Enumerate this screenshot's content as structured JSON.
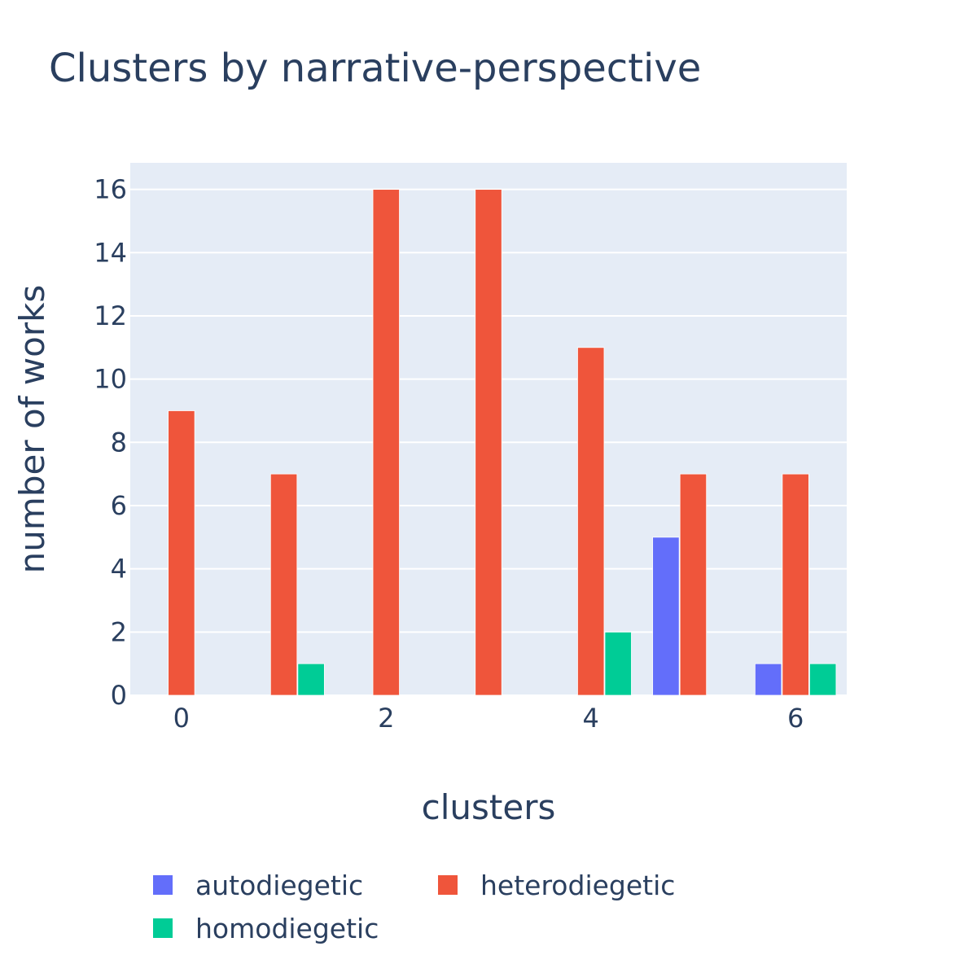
{
  "chart_data": {
    "type": "bar",
    "title": "Clusters by narrative-perspective",
    "xlabel": "clusters",
    "ylabel": "number of works",
    "x": [
      0,
      1,
      2,
      3,
      4,
      5,
      6
    ],
    "x_tick_values": [
      0,
      2,
      4,
      6
    ],
    "y_tick_values": [
      0,
      2,
      4,
      6,
      8,
      10,
      12,
      14,
      16
    ],
    "xlim": [
      -0.5,
      6.5
    ],
    "ylim": [
      0,
      16.84
    ],
    "grid": true,
    "legend_position": "bottom",
    "barmode": "group",
    "series": [
      {
        "name": "autodiegetic",
        "color": "#636efa",
        "values": [
          0,
          0,
          0,
          0,
          0,
          5,
          1
        ]
      },
      {
        "name": "heterodiegetic",
        "color": "#ef553b",
        "values": [
          9,
          7,
          16,
          16,
          11,
          7,
          7
        ]
      },
      {
        "name": "homodiegetic",
        "color": "#00cc96",
        "values": [
          0,
          1,
          0,
          0,
          2,
          0,
          1
        ]
      }
    ],
    "plot_background": "#e5ecf6"
  }
}
